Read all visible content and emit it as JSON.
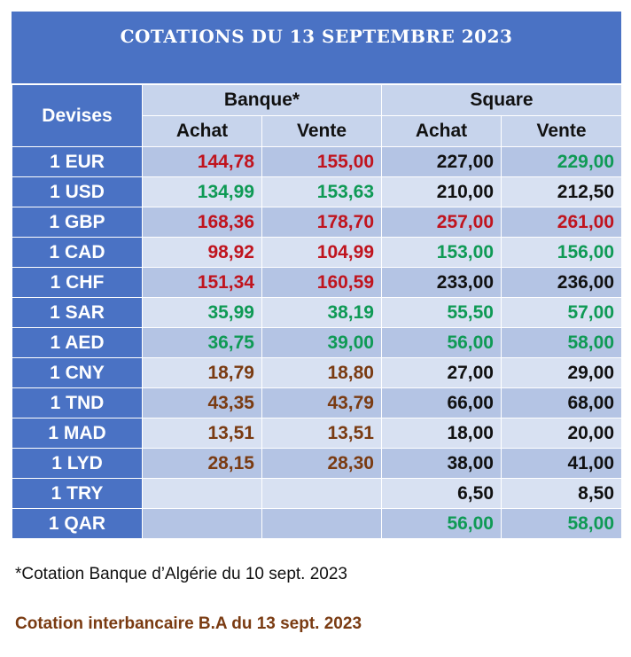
{
  "title": "COTATIONS DU 13 SEPTEMBRE 2023",
  "headers": {
    "devises": "Devises",
    "banque": "Banque*",
    "square": "Square",
    "achat": "Achat",
    "vente": "Vente"
  },
  "colors": {
    "red": "#c0141e",
    "green": "#0f9a55",
    "brown": "#7a3b12",
    "black": "#111111",
    "header_blue": "#4a72c4"
  },
  "rows": [
    {
      "devise": "1 EUR",
      "banque_achat": "144,78",
      "banque_vente": "155,00",
      "square_achat": "227,00",
      "square_vente": "229,00",
      "colors": [
        "red",
        "red",
        "black",
        "green"
      ]
    },
    {
      "devise": "1 USD",
      "banque_achat": "134,99",
      "banque_vente": "153,63",
      "square_achat": "210,00",
      "square_vente": "212,50",
      "colors": [
        "green",
        "green",
        "black",
        "black"
      ]
    },
    {
      "devise": "1 GBP",
      "banque_achat": "168,36",
      "banque_vente": "178,70",
      "square_achat": "257,00",
      "square_vente": "261,00",
      "colors": [
        "red",
        "red",
        "red",
        "red"
      ]
    },
    {
      "devise": "1 CAD",
      "banque_achat": "98,92",
      "banque_vente": "104,99",
      "square_achat": "153,00",
      "square_vente": "156,00",
      "colors": [
        "red",
        "red",
        "green",
        "green"
      ]
    },
    {
      "devise": "1 CHF",
      "banque_achat": "151,34",
      "banque_vente": "160,59",
      "square_achat": "233,00",
      "square_vente": "236,00",
      "colors": [
        "red",
        "red",
        "black",
        "black"
      ]
    },
    {
      "devise": "1 SAR",
      "banque_achat": "35,99",
      "banque_vente": "38,19",
      "square_achat": "55,50",
      "square_vente": "57,00",
      "colors": [
        "green",
        "green",
        "green",
        "green"
      ]
    },
    {
      "devise": "1 AED",
      "banque_achat": "36,75",
      "banque_vente": "39,00",
      "square_achat": "56,00",
      "square_vente": "58,00",
      "colors": [
        "green",
        "green",
        "green",
        "green"
      ]
    },
    {
      "devise": "1 CNY",
      "banque_achat": "18,79",
      "banque_vente": "18,80",
      "square_achat": "27,00",
      "square_vente": "29,00",
      "colors": [
        "brown",
        "brown",
        "black",
        "black"
      ]
    },
    {
      "devise": "1 TND",
      "banque_achat": "43,35",
      "banque_vente": "43,79",
      "square_achat": "66,00",
      "square_vente": "68,00",
      "colors": [
        "brown",
        "brown",
        "black",
        "black"
      ]
    },
    {
      "devise": "1 MAD",
      "banque_achat": "13,51",
      "banque_vente": "13,51",
      "square_achat": "18,00",
      "square_vente": "20,00",
      "colors": [
        "brown",
        "brown",
        "black",
        "black"
      ]
    },
    {
      "devise": "1 LYD",
      "banque_achat": "28,15",
      "banque_vente": "28,30",
      "square_achat": "38,00",
      "square_vente": "41,00",
      "colors": [
        "brown",
        "brown",
        "black",
        "black"
      ]
    },
    {
      "devise": "1 TRY",
      "banque_achat": "",
      "banque_vente": "",
      "square_achat": "6,50",
      "square_vente": "8,50",
      "colors": [
        "black",
        "black",
        "black",
        "black"
      ]
    },
    {
      "devise": "1 QAR",
      "banque_achat": "",
      "banque_vente": "",
      "square_achat": "56,00",
      "square_vente": "58,00",
      "colors": [
        "black",
        "black",
        "green",
        "green"
      ]
    }
  ],
  "footnote": "*Cotation Banque d’Algérie du 10 sept. 2023",
  "interbank_note": "Cotation interbancaire B.A du 13 sept. 2023"
}
